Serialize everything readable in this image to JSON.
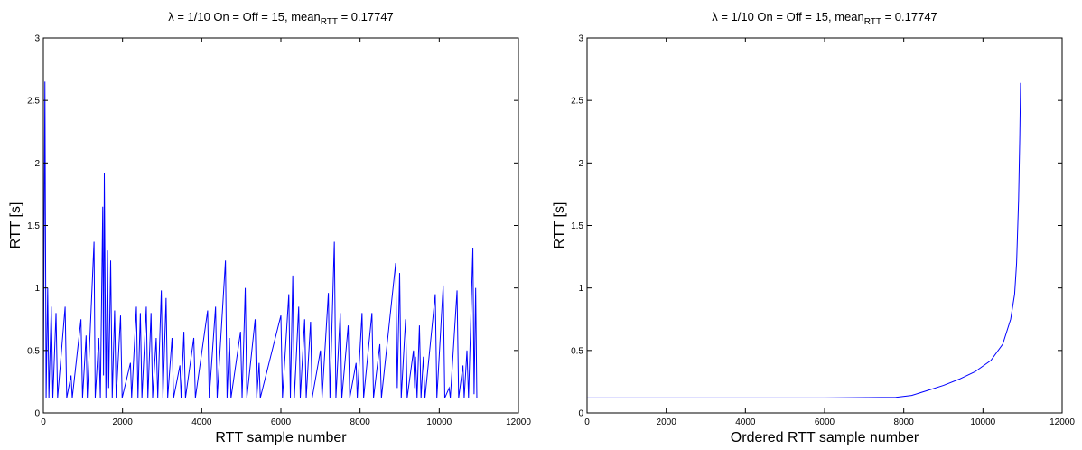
{
  "chart_data": [
    {
      "type": "line",
      "title": [
        "λ = 1/10 On = Off = 15, mean",
        "RTT",
        " = 0.17747"
      ],
      "xlabel": "RTT sample number",
      "ylabel": "RTT [s]",
      "color": "#0000ff",
      "xlim": [
        0,
        12000
      ],
      "xticks": [
        0,
        2000,
        4000,
        6000,
        8000,
        10000,
        12000
      ],
      "ylim": [
        0,
        3
      ],
      "yticks": [
        0,
        0.5,
        1,
        1.5,
        2,
        2.5,
        3
      ],
      "x": [
        0,
        40,
        70,
        110,
        140,
        200,
        240,
        320,
        360,
        550,
        590,
        700,
        730,
        950,
        990,
        1080,
        1110,
        1280,
        1310,
        1400,
        1440,
        1500,
        1520,
        1540,
        1580,
        1620,
        1650,
        1700,
        1740,
        1800,
        1840,
        1950,
        1990,
        2200,
        2230,
        2350,
        2390,
        2450,
        2490,
        2600,
        2640,
        2720,
        2760,
        2850,
        2890,
        2980,
        3020,
        3100,
        3140,
        3250,
        3290,
        3450,
        3480,
        3550,
        3590,
        3800,
        3840,
        4150,
        4190,
        4350,
        4390,
        4600,
        4640,
        4700,
        4740,
        4980,
        5020,
        5100,
        5140,
        5350,
        5390,
        5450,
        5480,
        6000,
        6040,
        6200,
        6240,
        6300,
        6340,
        6450,
        6490,
        6600,
        6640,
        6750,
        6790,
        7000,
        7040,
        7200,
        7240,
        7350,
        7390,
        7500,
        7540,
        7700,
        7740,
        7900,
        7930,
        8050,
        8090,
        8300,
        8340,
        8500,
        8540,
        8900,
        8940,
        9000,
        9040,
        9150,
        9190,
        9350,
        9380,
        9400,
        9440,
        9500,
        9540,
        9600,
        9640,
        9900,
        9940,
        10100,
        10140,
        10250,
        10280,
        10450,
        10490,
        10600,
        10630,
        10700,
        10740,
        10850,
        10880,
        10920,
        10950
      ],
      "values": [
        0.2,
        2.65,
        0.12,
        1.0,
        0.12,
        0.85,
        0.12,
        0.8,
        0.12,
        0.85,
        0.12,
        0.3,
        0.12,
        0.75,
        0.12,
        0.62,
        0.12,
        1.37,
        0.12,
        0.6,
        0.12,
        1.65,
        0.3,
        1.92,
        0.12,
        1.3,
        0.2,
        1.22,
        0.12,
        0.82,
        0.12,
        0.78,
        0.12,
        0.4,
        0.12,
        0.85,
        0.12,
        0.8,
        0.12,
        0.85,
        0.12,
        0.8,
        0.12,
        0.6,
        0.12,
        0.98,
        0.12,
        0.92,
        0.12,
        0.6,
        0.12,
        0.38,
        0.12,
        0.65,
        0.12,
        0.6,
        0.12,
        0.82,
        0.12,
        0.85,
        0.12,
        1.22,
        0.12,
        0.6,
        0.12,
        0.65,
        0.12,
        1.0,
        0.12,
        0.75,
        0.12,
        0.4,
        0.12,
        0.78,
        0.12,
        0.95,
        0.12,
        1.1,
        0.12,
        0.85,
        0.12,
        0.75,
        0.12,
        0.73,
        0.12,
        0.5,
        0.12,
        0.96,
        0.12,
        1.37,
        0.12,
        0.8,
        0.12,
        0.7,
        0.12,
        0.4,
        0.12,
        0.8,
        0.12,
        0.8,
        0.12,
        0.55,
        0.12,
        1.2,
        0.2,
        1.12,
        0.12,
        0.75,
        0.12,
        0.5,
        0.2,
        0.45,
        0.12,
        0.7,
        0.12,
        0.45,
        0.12,
        0.95,
        0.12,
        1.02,
        0.12,
        0.2,
        0.12,
        0.98,
        0.12,
        0.38,
        0.12,
        0.5,
        0.12,
        1.32,
        0.15,
        1.0,
        0.12
      ]
    },
    {
      "type": "line",
      "title": [
        "λ = 1/10 On = Off = 15, mean",
        "RTT",
        " = 0.17747"
      ],
      "xlabel": "Ordered RTT sample number",
      "ylabel": "RTT [s]",
      "color": "#0000ff",
      "xlim": [
        0,
        12000
      ],
      "xticks": [
        0,
        2000,
        4000,
        6000,
        8000,
        10000,
        12000
      ],
      "ylim": [
        0,
        3
      ],
      "yticks": [
        0,
        0.5,
        1,
        1.5,
        2,
        2.5,
        3
      ],
      "x": [
        0,
        2000,
        4000,
        6000,
        7800,
        8200,
        8600,
        9000,
        9400,
        9800,
        10200,
        10500,
        10700,
        10800,
        10850,
        10900,
        10930,
        10950
      ],
      "values": [
        0.12,
        0.12,
        0.12,
        0.12,
        0.125,
        0.14,
        0.18,
        0.22,
        0.27,
        0.33,
        0.42,
        0.55,
        0.75,
        0.95,
        1.2,
        1.7,
        2.2,
        2.64
      ]
    }
  ]
}
